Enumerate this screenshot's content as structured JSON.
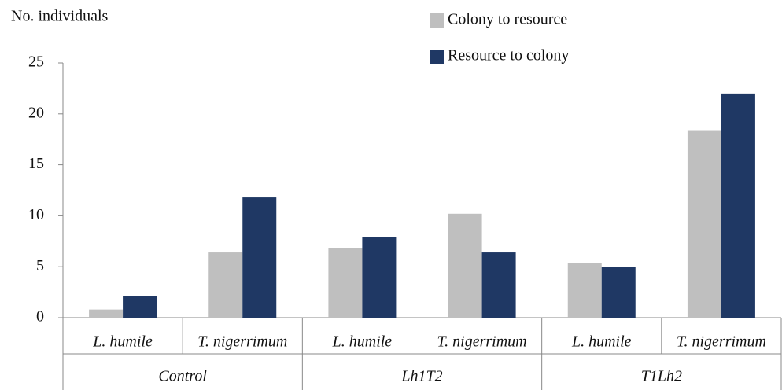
{
  "chart_data": {
    "type": "bar",
    "y_axis_label": "No. individuals",
    "categories": [
      "L. humile",
      "T. nigerrimum",
      "L. humile",
      "T. nigerrimum",
      "L. humile",
      "T. nigerrimum"
    ],
    "category_groups": [
      "Control",
      "Lh1T2",
      "T1Lh2"
    ],
    "series": [
      {
        "name": "Colony to resource",
        "color": "#bfbfbf",
        "values": [
          0.8,
          6.4,
          6.8,
          10.2,
          5.4,
          18.4
        ]
      },
      {
        "name": "Resource to colony",
        "color": "#1f3864",
        "values": [
          2.1,
          11.8,
          7.9,
          6.4,
          5.0,
          22.0
        ]
      }
    ],
    "ylim": [
      0,
      25
    ],
    "yticks": [
      0,
      5,
      10,
      15,
      20,
      25
    ],
    "grid": false,
    "legend": "top"
  }
}
